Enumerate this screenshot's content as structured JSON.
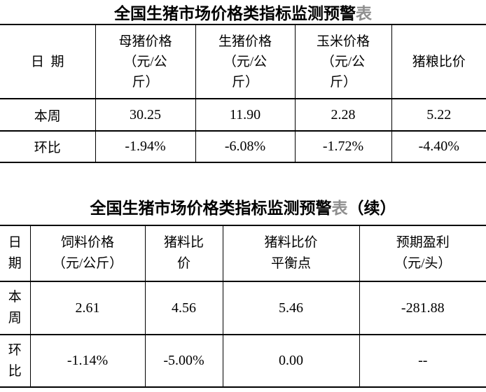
{
  "colors": {
    "background": "#ffffff",
    "text": "#000000",
    "border": "#000000",
    "title_suffix_gray": "#8f8f8f"
  },
  "title1": {
    "main": "全国生猪市场价格类指标监测预警",
    "suffix_gray": "表"
  },
  "title2": {
    "main": "全国生猪市场价格类指标监测预警",
    "suffix_gray": "表",
    "continued": "（续）"
  },
  "table1": {
    "headers": [
      "日期",
      "母猪价格\n（元/公\n斤）",
      "生猪价格\n（元/公\n斤）",
      "玉米价格\n（元/公\n斤）",
      "猪粮比价"
    ],
    "rows": [
      [
        "本周",
        "30.25",
        "11.90",
        "2.28",
        "5.22"
      ],
      [
        "环比",
        "-1.94%",
        "-6.08%",
        "-1.72%",
        "-4.40%"
      ]
    ]
  },
  "table2": {
    "headers": [
      "日\n期",
      "饲料价格\n（元/公斤）",
      "猪料比\n价",
      "猪料比价\n平衡点",
      "预期盈利\n（元/头）"
    ],
    "rows": [
      [
        "本\n周",
        "2.61",
        "4.56",
        "5.46",
        "-281.88"
      ],
      [
        "环\n比",
        "-1.14%",
        "-5.00%",
        "0.00",
        "--"
      ]
    ]
  }
}
